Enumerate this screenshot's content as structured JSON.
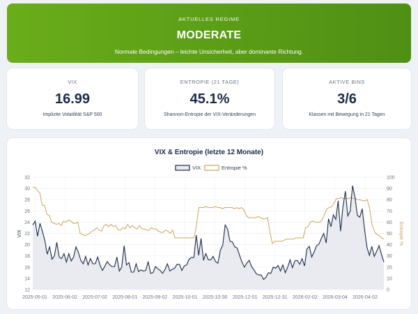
{
  "regime": {
    "label": "AKTUELLES REGIME",
    "value": "MODERATE",
    "description": "Normale Bedingungen – leichte Unsicherheit, aber dominante Richtung.",
    "color": "#5e9e17"
  },
  "cards": [
    {
      "label": "VIX",
      "value": "16.99",
      "subtitle": "Implizite Volatilität S&P 500"
    },
    {
      "label": "ENTROPIE (21 TAGE)",
      "value": "45.1%",
      "subtitle": "Shannon-Entropie der VIX-Veränderungen"
    },
    {
      "label": "AKTIVE BINS",
      "value": "3/6",
      "subtitle": "Klassen mit Bewegung in 21 Tagen"
    }
  ],
  "chart_data": {
    "type": "line",
    "title": "VIX & Entropie (letzte 12 Monate)",
    "xlabel": "",
    "x_ticks": [
      "2025-05-01",
      "2025-06-02",
      "2025-07-02",
      "2025-08-01",
      "2025-09-02",
      "2025-10-01",
      "2025-10-30",
      "2025-12-01",
      "2025-12-31",
      "2026-02-02",
      "2026-03-04",
      "2026-04-02"
    ],
    "y_left": {
      "label": "VIX",
      "range": [
        12,
        32
      ],
      "ticks": [
        12,
        14,
        16,
        18,
        20,
        22,
        24,
        26,
        28,
        30,
        32
      ]
    },
    "y_right": {
      "label": "Entropie %",
      "range": [
        0,
        100
      ],
      "ticks": [
        0,
        10,
        20,
        30,
        40,
        50,
        60,
        70,
        80,
        90,
        100
      ]
    },
    "legend_position": "top-center",
    "grid": true,
    "series": [
      {
        "name": "VIX",
        "axis": "left",
        "color": "#1c2a4a",
        "fill": "#e9ebf0",
        "values": [
          23.5,
          24.2,
          21.5,
          23.8,
          22.4,
          20.8,
          18.3,
          19.6,
          17.4,
          18.0,
          20.4,
          17.8,
          17.5,
          18.4,
          16.9,
          18.4,
          17.1,
          17.8,
          19.6,
          18.6,
          17.2,
          16.6,
          17.9,
          16.4,
          17.5,
          16.6,
          16.6,
          17.8,
          16.3,
          15.4,
          16.2,
          17.0,
          16.4,
          16.1,
          16.1,
          17.8,
          15.3,
          16.0,
          19.8,
          16.4,
          16.8,
          15.1,
          15.1,
          16.6,
          15.2,
          15.5,
          15.3,
          15.4,
          17.0,
          14.9,
          15.0,
          16.1,
          15.7,
          15.4,
          14.9,
          15.6,
          16.6,
          15.3,
          15.6,
          15.8,
          16.5,
          16.5,
          15.4,
          16.2,
          16.4,
          17.4,
          17.7,
          17.7,
          21.7,
          18.1,
          21.1,
          17.2,
          18.4,
          17.3,
          17.3,
          17.9,
          17.0,
          16.7,
          19.0,
          19.9,
          23.5,
          22.8,
          20.6,
          20.5,
          19.6,
          19.4,
          18.1,
          16.9,
          16.0,
          16.7,
          17.2,
          16.1,
          15.5,
          14.8,
          14.6,
          14.6,
          13.8,
          14.2,
          15.0,
          14.9,
          16.0,
          15.8,
          16.3,
          15.3,
          16.4,
          15.0,
          16.0,
          17.3,
          15.9,
          17.1,
          17.2,
          16.5,
          17.5,
          16.2,
          19.2,
          19.7,
          17.8,
          18.7,
          19.8,
          20.1,
          21.1,
          22.0,
          20.3,
          24.6,
          23.2,
          25.3,
          24.5,
          27.8,
          22.4,
          26.8,
          29.5,
          25.1,
          26.0,
          30.5,
          28.4,
          25.2,
          24.9,
          26.4,
          22.6,
          19.5,
          18.1,
          19.7,
          17.9,
          18.8,
          19.8,
          18.3,
          16.9
        ],
        "overlay": "wiggle"
      },
      {
        "name": "Entropie %",
        "axis": "right",
        "color": "#c9a560",
        "values": [
          91,
          91,
          88,
          86,
          75,
          75,
          67,
          66,
          60,
          59,
          58,
          59,
          57,
          61,
          60,
          62,
          61,
          59,
          59,
          60,
          50,
          49,
          48,
          49,
          50,
          52,
          53,
          55,
          53,
          52,
          57,
          58,
          56,
          58,
          56,
          57,
          53,
          53,
          55,
          54,
          58,
          55,
          57,
          55,
          54,
          57,
          54,
          54,
          53,
          53,
          55,
          54,
          54,
          52,
          51,
          51,
          53,
          52,
          50,
          53,
          46,
          46,
          46,
          46,
          46,
          46,
          46,
          46,
          46,
          57,
          73,
          73,
          73,
          74,
          73,
          73,
          73,
          74,
          73,
          73,
          72,
          73,
          73,
          73,
          73,
          72,
          73,
          72,
          73,
          71,
          66,
          64,
          64,
          64,
          64,
          65,
          64,
          63,
          63,
          64,
          51,
          41,
          43,
          43,
          43,
          43,
          44,
          45,
          45,
          45,
          45,
          46,
          46,
          46,
          46,
          55,
          56,
          60,
          61,
          60,
          60,
          60,
          62,
          67,
          72,
          73,
          74,
          77,
          81,
          81,
          82,
          81,
          81,
          81,
          82,
          81,
          81,
          80,
          80,
          79,
          79,
          80,
          72,
          58,
          52,
          49,
          48,
          46,
          45
        ]
      }
    ]
  }
}
